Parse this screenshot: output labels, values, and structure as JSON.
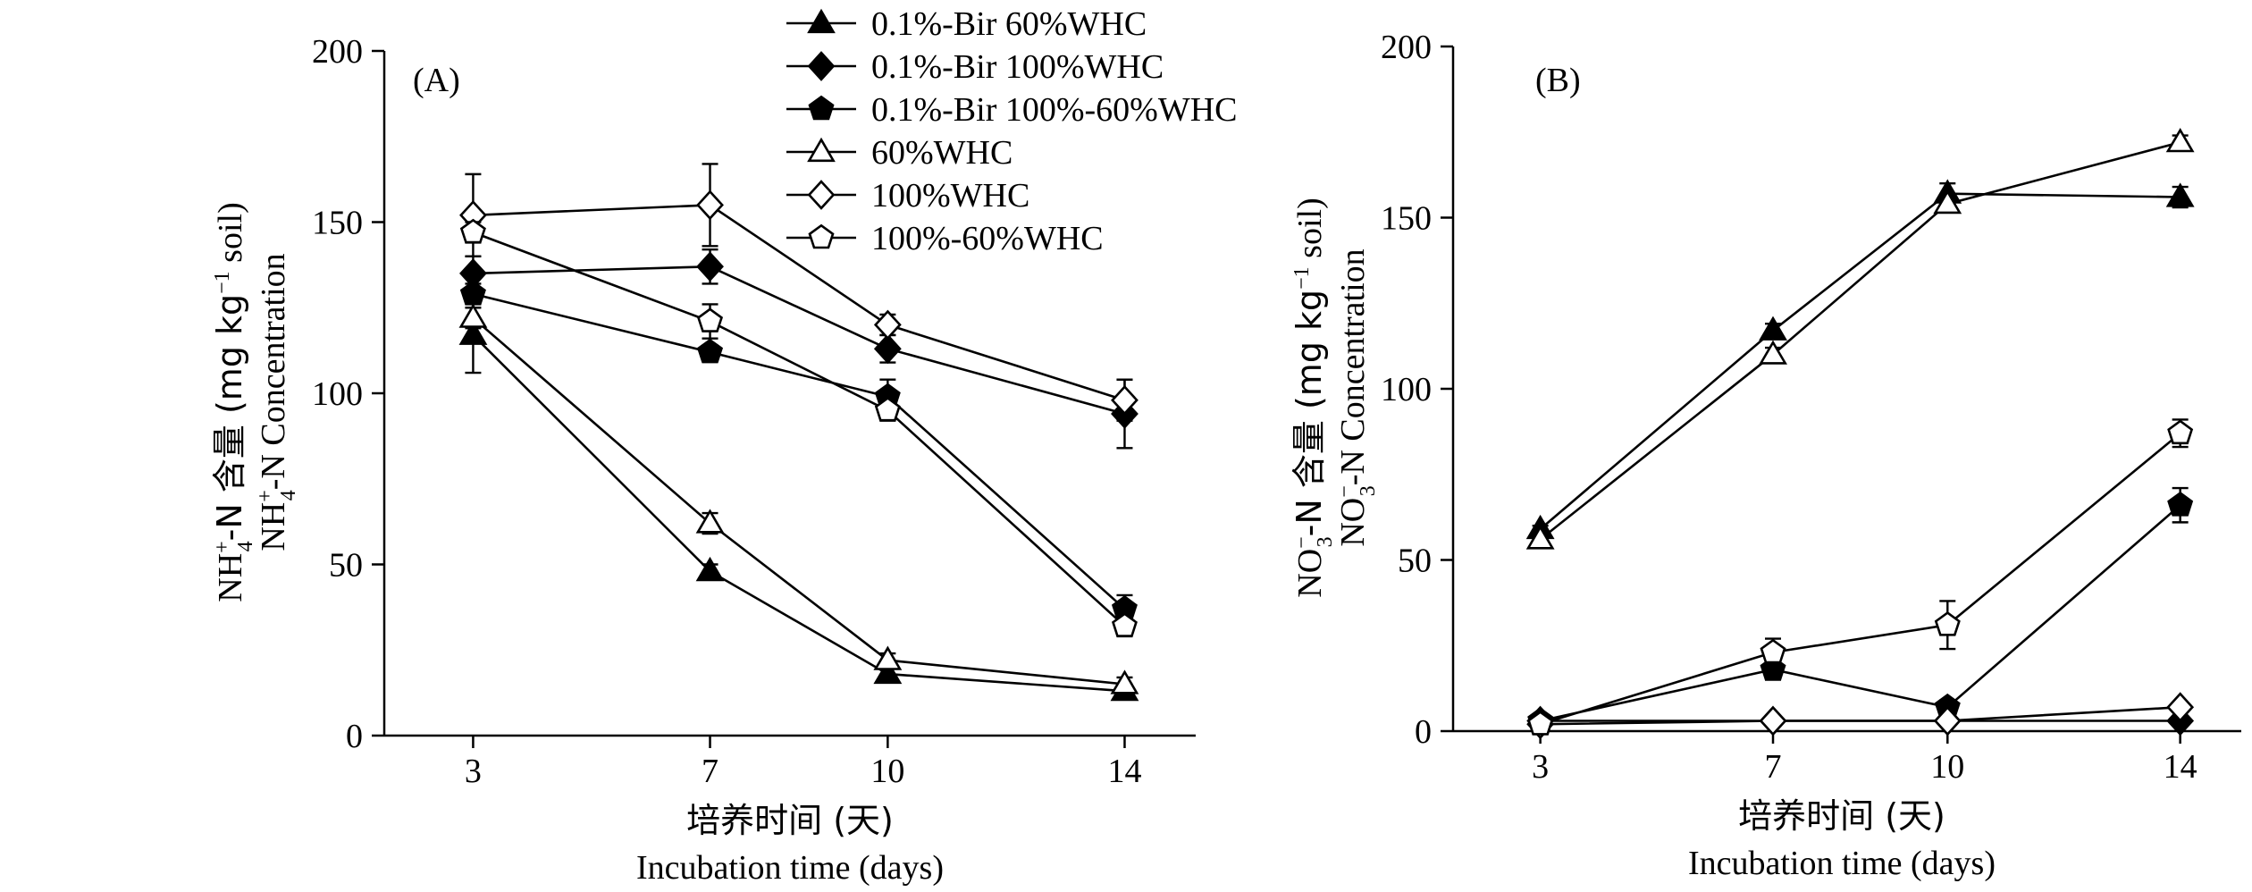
{
  "chart_data": [
    {
      "type": "line",
      "panel_label": "(A)",
      "ylabel": {
        "cn_prefix": "NH",
        "cn_sub": "4",
        "cn_sup": "+",
        "cn_rest": "-N 含量 (mg kg",
        "cn_unit_sup": "−1",
        "cn_tail": " soil)",
        "en_prefix": "NH",
        "en_sub": "4",
        "en_sup": "+",
        "en_rest": "-N Concentration"
      },
      "xlabel": {
        "cn": "培养时间 (天)",
        "en": "Incubation time (days)"
      },
      "x": [
        3,
        7,
        10,
        14
      ],
      "xticks": [
        "3",
        "7",
        "10",
        "14"
      ],
      "ylim": [
        0,
        200
      ],
      "yticks": [
        "0",
        "50",
        "100",
        "150",
        "200"
      ],
      "series": [
        {
          "name": "0.1%-Bir 60%WHC",
          "marker": "triangle",
          "fill": "black",
          "values": [
            117,
            48,
            18,
            13
          ],
          "errors": [
            11,
            2,
            2,
            2
          ]
        },
        {
          "name": "0.1%-Bir 100%WHC",
          "marker": "diamond",
          "fill": "black",
          "values": [
            135,
            137,
            113,
            94
          ],
          "errors": [
            5,
            5,
            4,
            10
          ]
        },
        {
          "name": "0.1%-Bir 100%-60%WHC",
          "marker": "pentagon",
          "fill": "black",
          "values": [
            129,
            112,
            99,
            37
          ],
          "errors": [
            3,
            2,
            5,
            4
          ]
        },
        {
          "name": "60%WHC",
          "marker": "triangle",
          "fill": "white",
          "values": [
            122,
            62,
            22,
            15
          ],
          "errors": [
            3,
            3,
            2,
            2
          ]
        },
        {
          "name": "100%WHC",
          "marker": "diamond",
          "fill": "white",
          "values": [
            152,
            155,
            120,
            98
          ],
          "errors": [
            12,
            12,
            3,
            6
          ]
        },
        {
          "name": "100%-60%WHC",
          "marker": "pentagon",
          "fill": "white",
          "values": [
            147,
            121,
            95,
            32
          ],
          "errors": [
            3,
            5,
            3,
            3
          ]
        }
      ]
    },
    {
      "type": "line",
      "panel_label": "(B)",
      "ylabel": {
        "cn_prefix": "NO",
        "cn_sub": "3",
        "cn_sup": "−",
        "cn_rest": "-N 含量 (mg kg",
        "cn_unit_sup": "−1",
        "cn_tail": " soil)",
        "en_prefix": "NO",
        "en_sub": "3",
        "en_sup": "−",
        "en_rest": "-N Concentration"
      },
      "xlabel": {
        "cn": "培养时间 (天)",
        "en": "Incubation time (days)"
      },
      "x": [
        3,
        7,
        10,
        14
      ],
      "xticks": [
        "3",
        "7",
        "10",
        "14"
      ],
      "ylim": [
        0,
        200
      ],
      "yticks": [
        "0",
        "50",
        "100",
        "150",
        "200"
      ],
      "series": [
        {
          "name": "0.1%-Bir 60%WHC",
          "marker": "triangle",
          "fill": "black",
          "values": [
            59,
            117,
            157,
            156
          ],
          "errors": [
            1,
            2,
            3,
            3
          ]
        },
        {
          "name": "0.1%-Bir 100%WHC",
          "marker": "diamond",
          "fill": "black",
          "values": [
            3,
            3,
            3,
            3
          ],
          "errors": [
            0,
            0,
            0,
            0
          ]
        },
        {
          "name": "0.1%-Bir 100%-60%WHC",
          "marker": "pentagon",
          "fill": "black",
          "values": [
            3,
            18,
            7,
            66
          ],
          "errors": [
            0,
            3,
            2,
            5
          ]
        },
        {
          "name": "60%WHC",
          "marker": "triangle",
          "fill": "white",
          "values": [
            56,
            110,
            154,
            172
          ],
          "errors": [
            1,
            2,
            2,
            2
          ]
        },
        {
          "name": "100%WHC",
          "marker": "diamond",
          "fill": "white",
          "values": [
            2,
            3,
            3,
            7
          ],
          "errors": [
            0,
            0,
            0,
            1
          ]
        },
        {
          "name": "100%-60%WHC",
          "marker": "pentagon",
          "fill": "white",
          "values": [
            2,
            23,
            31,
            87
          ],
          "errors": [
            0,
            4,
            7,
            4
          ]
        }
      ]
    }
  ],
  "legend": {
    "placement": "top-center",
    "entries": [
      {
        "label": "0.1%-Bir 60%WHC",
        "marker": "triangle",
        "fill": "black"
      },
      {
        "label": "0.1%-Bir 100%WHC",
        "marker": "diamond",
        "fill": "black"
      },
      {
        "label": "0.1%-Bir 100%-60%WHC",
        "marker": "pentagon",
        "fill": "black"
      },
      {
        "label": "60%WHC",
        "marker": "triangle",
        "fill": "white"
      },
      {
        "label": "100%WHC",
        "marker": "diamond",
        "fill": "white"
      },
      {
        "label": "100%-60%WHC",
        "marker": "pentagon",
        "fill": "white"
      }
    ]
  }
}
